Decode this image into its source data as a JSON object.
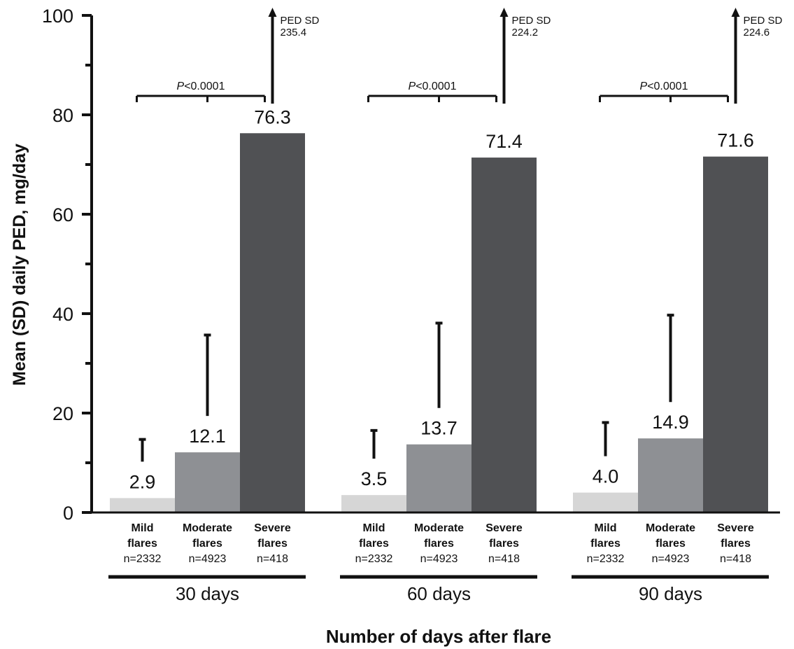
{
  "chart_data": {
    "type": "bar",
    "title": "",
    "ylabel": "Mean (SD) daily PED, mg/day",
    "xlabel": "Number of days after flare",
    "ylim": [
      0,
      100
    ],
    "yticks": [
      "0",
      "20",
      "40",
      "60",
      "80",
      "100"
    ],
    "grid": false,
    "colors": {
      "mild": "#d6d6d6",
      "moderate": "#8e9094",
      "severe": "#505154",
      "ink": "#111111"
    },
    "categories": [
      {
        "line1": "Mild",
        "line2": "flares",
        "n": "n=2332"
      },
      {
        "line1": "Moderate",
        "line2": "flares",
        "n": "n=4923"
      },
      {
        "line1": "Severe",
        "line2": "flares",
        "n": "n=418"
      }
    ],
    "groups": [
      {
        "name": "30 days",
        "values": [
          2.9,
          12.1,
          76.3
        ],
        "labels": [
          "2.9",
          "12.1",
          "76.3"
        ],
        "sd": [
          11.8,
          23.6,
          235.4
        ],
        "sd_note_title": "PED SD",
        "sd_note_value": "235.4",
        "p_label_italic": "P",
        "p_label_rest": "<0.0001"
      },
      {
        "name": "60 days",
        "values": [
          3.5,
          13.7,
          71.4
        ],
        "labels": [
          "3.5",
          "13.7",
          "71.4"
        ],
        "sd": [
          13.0,
          24.4,
          224.2
        ],
        "sd_note_title": "PED SD",
        "sd_note_value": "224.2",
        "p_label_italic": "P",
        "p_label_rest": "<0.0001"
      },
      {
        "name": "90 days",
        "values": [
          4.0,
          14.9,
          71.6
        ],
        "labels": [
          "4.0",
          "14.9",
          "71.6"
        ],
        "sd": [
          14.1,
          24.8,
          224.6
        ],
        "sd_note_title": "PED SD",
        "sd_note_value": "224.6",
        "p_label_italic": "P",
        "p_label_rest": "<0.0001"
      }
    ]
  }
}
